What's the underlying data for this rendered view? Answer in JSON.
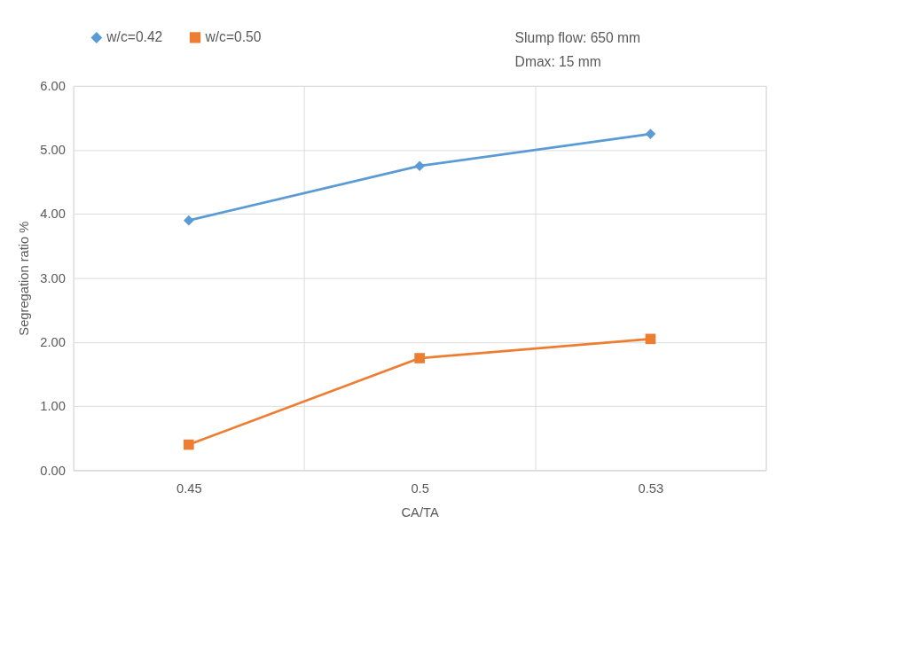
{
  "chart_data": {
    "type": "line",
    "xlabel": "CA/TA",
    "ylabel": "Segregation ratio %",
    "categories": [
      "0.45",
      "0.5",
      "0.53"
    ],
    "series": [
      {
        "name": "w/c=0.42",
        "color": "#5b9bd5",
        "marker": "diamond",
        "values": [
          3.9,
          4.75,
          5.25
        ]
      },
      {
        "name": "w/c=0.50",
        "color": "#ed7d31",
        "marker": "square",
        "values": [
          0.4,
          1.75,
          2.05
        ]
      }
    ],
    "ylim": [
      0,
      6
    ],
    "yticks": [
      {
        "value": 0,
        "label": "0.00"
      },
      {
        "value": 1,
        "label": "1.00"
      },
      {
        "value": 2,
        "label": "2.00"
      },
      {
        "value": 3,
        "label": "3.00"
      },
      {
        "value": 4,
        "label": "4.00"
      },
      {
        "value": 5,
        "label": "5.00"
      },
      {
        "value": 6,
        "label": "6.00"
      }
    ],
    "grid": true,
    "legend": "top left",
    "line_style": "solid",
    "annotations": [
      "Slump flow: 650 mm",
      "Dmax: 15 mm"
    ]
  }
}
